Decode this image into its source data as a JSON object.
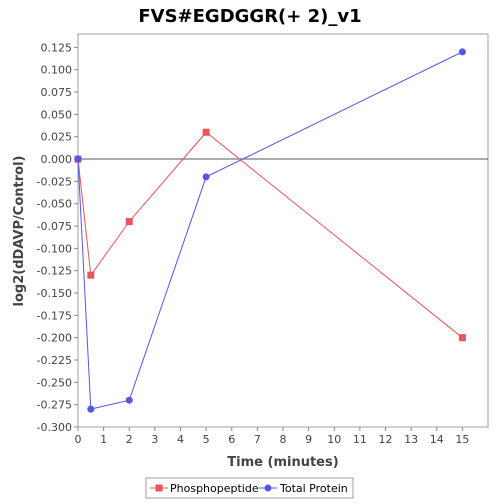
{
  "chart_data": {
    "type": "line",
    "title": "FVS#EGDGGR(+ 2)_v1",
    "xlabel": "Time (minutes)",
    "ylabel": "log2(dDAVP/Control)",
    "xlim": [
      0,
      16
    ],
    "ylim": [
      -0.3,
      0.14
    ],
    "x_ticks": [
      0,
      1,
      2,
      3,
      4,
      5,
      6,
      7,
      8,
      9,
      10,
      11,
      12,
      13,
      14,
      15
    ],
    "x_tick_labels": [
      "0",
      "1",
      "2",
      "3",
      "4",
      "5",
      "6",
      "7",
      "8",
      "9",
      "10",
      "11",
      "12",
      "13",
      "14",
      "15"
    ],
    "y_ticks": [
      -0.3,
      -0.275,
      -0.25,
      -0.225,
      -0.2,
      -0.175,
      -0.15,
      -0.125,
      -0.1,
      -0.075,
      -0.05,
      -0.025,
      0,
      0.025,
      0.05,
      0.075,
      0.1,
      0.125
    ],
    "y_tick_labels": [
      "-0.300",
      "-0.275",
      "-0.250",
      "-0.225",
      "-0.200",
      "-0.175",
      "-0.150",
      "-0.125",
      "-0.100",
      "-0.075",
      "-0.050",
      "-0.025",
      "0.000",
      "0.025",
      "0.050",
      "0.075",
      "0.100",
      "0.125"
    ],
    "zero_line": true,
    "grid": false,
    "legend_position": "bottom",
    "series": [
      {
        "name": "Phosphopeptide",
        "color": "#e8555a",
        "marker": "square",
        "points": [
          [
            0,
            0.0
          ],
          [
            0.5,
            -0.13
          ],
          [
            2,
            -0.07
          ],
          [
            5,
            0.03
          ],
          [
            15,
            -0.2
          ]
        ]
      },
      {
        "name": "Total Protein",
        "color": "#5555e8",
        "marker": "circle",
        "points": [
          [
            0,
            0.0
          ],
          [
            0.5,
            -0.28
          ],
          [
            2,
            -0.27
          ],
          [
            5,
            -0.02
          ],
          [
            15,
            0.12
          ]
        ]
      }
    ]
  }
}
